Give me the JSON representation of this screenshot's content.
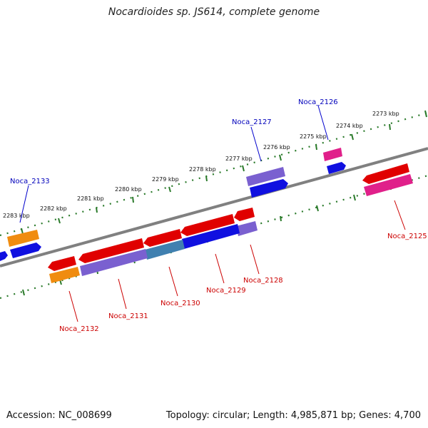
{
  "title": "Nocardioides sp. JS614, complete genome",
  "footer": {
    "accession": "Accession: NC_008699",
    "summary": "Topology: circular; Length: 4,985,871 bp; Genes: 4,700"
  },
  "kbp_labels": [
    "2273 kbp",
    "2274 kbp",
    "2275 kbp",
    "2276 kbp",
    "2277 kbp",
    "2278 kbp",
    "2279 kbp",
    "2280 kbp",
    "2281 kbp",
    "2282 kbp",
    "2283 kbp"
  ],
  "genes_top": [
    "Noca_2126",
    "Noca_2127",
    "Noca_2133"
  ],
  "genes_bottom": [
    "Noca_2125",
    "Noca_2128",
    "Noca_2129",
    "Noca_2130",
    "Noca_2131",
    "Noca_2132"
  ],
  "colors": {
    "red": "#e00000",
    "blue": "#1010e0",
    "purple": "#7a60d0",
    "pink": "#e0208a",
    "orange": "#f08c10",
    "steel": "#4080b0",
    "backbone": "#808080",
    "tick": "#2a7a2a",
    "label_top": "#0000bb",
    "label_bottom": "#cc0000"
  }
}
